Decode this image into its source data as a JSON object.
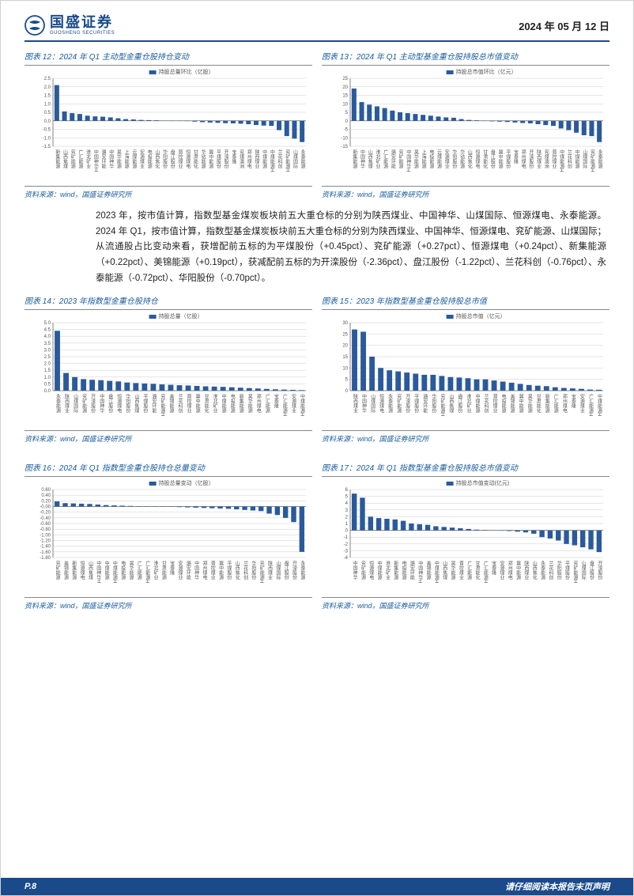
{
  "header": {
    "logo_cn": "国盛证券",
    "logo_en": "GUOSHENG SECURITIES",
    "date": "2024 年 05 月 12 日"
  },
  "source_label": "资料来源：wind，国盛证券研究所",
  "body_text": "2023 年，按市值计算，指数型基金煤炭板块前五大重仓标的分别为陕西煤业、中国神华、山煤国际、恒源煤电、永泰能源。2024 年 Q1，按市值计算，指数型基金煤炭板块前五大重仓标的分别为陕西煤业、中国神华、恒源煤电、兖矿能源、山煤国际；从流通股占比变动来看，获增配前五标的为平煤股份（+0.45pct）、兖矿能源（+0.27pct）、恒源煤电（+0.24pct）、新集能源（+0.22pct）、美锦能源（+0.19pct），获减配前五标的为开滦股份（-2.36pct）、盘江股份（-1.22pct）、兰花科创（-0.76pct）、永泰能源（-0.72pct）、华阳股份（-0.70pct）。",
  "charts": {
    "c12": {
      "title": "图表 12：2024 年 Q1 主动型金重仓股持仓变动",
      "legend": "持股总量环比（亿股）",
      "type": "bar",
      "bar_color": "#2a5a9c",
      "grid_color": "#cccccc",
      "axis_color": "#666666",
      "label_color": "#555555",
      "ylim": [
        -1.5,
        2.5
      ],
      "ytick_step": 0.5,
      "label_fontsize": 6,
      "legend_fontsize": 7,
      "categories": [
        "新集能源",
        "山西焦煤",
        "兖矿能源",
        "广汇能源",
        "淮北矿业",
        "中国神华H",
        "潞安环能",
        "中国神华",
        "昊华能源",
        "上海能源",
        "云煤能源",
        "安源煤业",
        "电投能源",
        "山西焦化",
        "华阳股份",
        "盘江股份",
        "晋控煤业",
        "恒源煤电",
        "甘肃能化",
        "华钴能源",
        "冀中能源",
        "平煤股份",
        "开滦股份",
        "宝泰隆",
        "兖煤澳洲",
        "郑州煤电",
        "陕西煤业",
        "中煤能源",
        "中煤能源H",
        "兰花科创",
        "兖矿能源H",
        "山煤国际",
        "永泰能源"
      ],
      "values": [
        2.1,
        0.55,
        0.45,
        0.4,
        0.3,
        0.26,
        0.24,
        0.2,
        0.15,
        0.1,
        0.08,
        0.05,
        0.04,
        0.03,
        0.01,
        0,
        -0.01,
        -0.02,
        -0.05,
        -0.08,
        -0.1,
        -0.12,
        -0.14,
        -0.15,
        -0.17,
        -0.2,
        -0.25,
        -0.28,
        -0.3,
        -0.55,
        -0.9,
        -1.05,
        -1.25
      ]
    },
    "c13": {
      "title": "图表 13：2024 年 Q1 主动型基金重仓股持股总市值变动",
      "legend": "持股总市值环比（亿元）",
      "type": "bar",
      "bar_color": "#2a5a9c",
      "grid_color": "#cccccc",
      "axis_color": "#666666",
      "label_color": "#555555",
      "ylim": [
        -15,
        25
      ],
      "ytick_step": 5,
      "label_fontsize": 6,
      "legend_fontsize": 7,
      "categories": [
        "新集能源",
        "中国神华",
        "山西焦煤",
        "淮北矿业",
        "广汇能源",
        "潞安环能",
        "兖矿能源",
        "中国神华H",
        "昊华能源",
        "上海能源",
        "电投能源",
        "云煤能源",
        "安源煤业",
        "华阳股份",
        "华钴能源",
        "山西焦化",
        "恒源煤电",
        "甘肃能化",
        "盘江股份",
        "冀中能源",
        "平煤股份",
        "宝泰隆",
        "郑州煤电",
        "开滦股份",
        "陕西煤业",
        "兖煤澳洲",
        "晋控煤业",
        "中煤能源H",
        "兰花科创",
        "中煤能源",
        "山煤国际",
        "兖矿能源H",
        "永泰能源"
      ],
      "values": [
        19,
        11,
        9.5,
        8.5,
        7.5,
        6,
        5,
        4.5,
        4,
        3.5,
        3,
        2.5,
        2,
        1.8,
        1,
        0.5,
        0.3,
        -0.1,
        -0.3,
        -0.5,
        -0.7,
        -1,
        -1.3,
        -1.5,
        -2,
        -2.5,
        -3,
        -4.5,
        -5.5,
        -7,
        -8.5,
        -9,
        -12.5
      ]
    },
    "c14": {
      "title": "图表 14：2023 年指数型金重仓股持仓",
      "legend": "持股总量（亿股）",
      "type": "bar",
      "bar_color": "#2a5a9c",
      "grid_color": "#cccccc",
      "axis_color": "#666666",
      "label_color": "#555555",
      "ylim": [
        0,
        5
      ],
      "ytick_step": 0.5,
      "label_fontsize": 6,
      "legend_fontsize": 7,
      "categories": [
        "永泰能源",
        "陕西煤业",
        "山煤国际",
        "兖矿能源",
        "开滦股份",
        "中国神华",
        "盘江股份",
        "恒源煤电",
        "华阳股份",
        "山西焦煤",
        "平煤股份",
        "潞安环能",
        "兖矿能源H",
        "美锦能源",
        "兰花科创",
        "晋控煤业",
        "冀中能源",
        "甘肃能化",
        "淮北矿业",
        "中煤能源",
        "电投能源",
        "新集能源",
        "昊华能源",
        "郑州煤电",
        "广汇能源",
        "宝泰隆",
        "广汇能源H",
        "安源煤业",
        "中煤能源H"
      ],
      "values": [
        4.4,
        1.3,
        1.0,
        0.85,
        0.8,
        0.77,
        0.72,
        0.68,
        0.6,
        0.56,
        0.53,
        0.5,
        0.46,
        0.43,
        0.4,
        0.38,
        0.35,
        0.32,
        0.3,
        0.28,
        0.25,
        0.22,
        0.19,
        0.16,
        0.13,
        0.1,
        0.08,
        0.06,
        0.04
      ]
    },
    "c15": {
      "title": "图表 15：2023 年指数型基金重仓股持股总市值",
      "legend": "持股总市值（亿元）",
      "type": "bar",
      "bar_color": "#2a5a9c",
      "grid_color": "#cccccc",
      "axis_color": "#666666",
      "label_color": "#555555",
      "ylim": [
        0,
        30
      ],
      "ytick_step": 5,
      "label_fontsize": 6,
      "legend_fontsize": 7,
      "categories": [
        "陕西煤业",
        "中国神华",
        "山煤国际",
        "恒源煤电",
        "永泰能源",
        "兖矿能源",
        "开滦股份",
        "平煤股份",
        "潞安环能",
        "华阳股份",
        "兖矿能源H",
        "山西焦煤",
        "盘江股份",
        "淮北矿业",
        "中煤能源",
        "兰花科创",
        "晋控煤业",
        "电投能源",
        "美锦能源",
        "冀中能源",
        "昊华能源",
        "甘肃能化",
        "新集能源",
        "广汇能源",
        "郑州煤电",
        "宝泰隆",
        "安源煤业",
        "广汇能源H",
        "中煤能源H"
      ],
      "values": [
        27,
        26,
        15,
        10,
        9,
        8.5,
        8,
        7.5,
        7,
        7,
        6.5,
        6,
        5.8,
        5.5,
        5,
        5,
        4.5,
        4,
        3.5,
        3,
        2.5,
        2.2,
        2,
        1.5,
        1.2,
        1,
        0.8,
        0.5,
        0.4
      ]
    },
    "c16": {
      "title": "图表 16：2024 年 Q1 指数型金重仓股持仓总量变动",
      "legend": "持股总量变动（亿股）",
      "type": "bar",
      "bar_color": "#2a5a9c",
      "grid_color": "#cccccc",
      "axis_color": "#666666",
      "label_color": "#555555",
      "ylim": [
        -1.8,
        0.6
      ],
      "ytick_step": 0.2,
      "label_fontsize": 6,
      "legend_fontsize": 7,
      "categories": [
        "兖矿能源",
        "美锦能源",
        "新集能源",
        "恒源煤电",
        "山西焦煤",
        "中国神华H",
        "中煤能源",
        "中煤能源H",
        "电投能源",
        "昊华能源",
        "广汇能源",
        "广汇能源H",
        "淮北矿业",
        "甘肃能源",
        "宝泰隆",
        "安源煤业",
        "潞安环能",
        "中国神华",
        "郑州煤电",
        "晋控煤业",
        "冀中能源",
        "平煤股份",
        "山西焦化",
        "兰花科创",
        "华阳股份",
        "兖矿能源H",
        "陕西煤业",
        "山煤国际",
        "盘江股份",
        "开滦股份",
        "永泰能源"
      ],
      "values": [
        0.18,
        0.12,
        0.11,
        0.1,
        0.09,
        0.07,
        0.05,
        0.04,
        0.03,
        0.02,
        0.01,
        0.01,
        0,
        0,
        -0.01,
        -0.02,
        -0.03,
        -0.04,
        -0.05,
        -0.06,
        -0.07,
        -0.08,
        -0.1,
        -0.12,
        -0.14,
        -0.16,
        -0.25,
        -0.3,
        -0.4,
        -0.55,
        -1.6
      ]
    },
    "c17": {
      "title": "图表 17：2024 年 Q1 指数型基金重仓股持股总市值变动",
      "legend": "持股总市值变动(亿元)",
      "type": "bar",
      "bar_color": "#2a5a9c",
      "grid_color": "#cccccc",
      "axis_color": "#666666",
      "label_color": "#555555",
      "ylim": [
        -4,
        6
      ],
      "ytick_step": 1,
      "label_fontsize": 6,
      "legend_fontsize": 7,
      "categories": [
        "中国神华",
        "兖矿能源",
        "恒源煤电",
        "中煤能源",
        "淮北矿业",
        "新集能源",
        "电投能源",
        "潞安环能",
        "中国神华H",
        "美锦能源",
        "中煤能源H",
        "山西焦煤",
        "昊华能源",
        "晋控煤业",
        "广汇能源",
        "甘肃能化",
        "广汇能源H",
        "宝泰隆",
        "安源煤业",
        "郑州煤电",
        "冀中能源",
        "陕西煤业",
        "山西焦化",
        "永泰能源",
        "兰花科创",
        "华阳股份",
        "平煤股份",
        "兖矿能源H",
        "山煤国际",
        "盘江股份",
        "开滦股份"
      ],
      "values": [
        5.4,
        4.8,
        2.0,
        1.8,
        1.7,
        1.6,
        1.4,
        1.0,
        0.9,
        0.8,
        0.6,
        0.5,
        0.4,
        0.3,
        0.2,
        0.1,
        0.05,
        0,
        -0.05,
        -0.1,
        -0.2,
        -0.3,
        -0.5,
        -1.0,
        -1.2,
        -1.5,
        -2.0,
        -2.2,
        -2.5,
        -2.8,
        -3.2
      ]
    }
  },
  "footer": {
    "page": "P.8",
    "disclaimer": "请仔细阅读本报告末页声明"
  }
}
